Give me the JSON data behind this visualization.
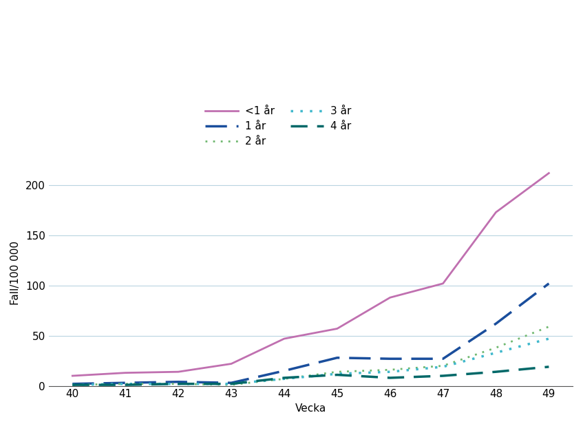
{
  "weeks": [
    40,
    41,
    42,
    43,
    44,
    45,
    46,
    47,
    48,
    49
  ],
  "series": {
    "<1 ar": [
      10,
      13,
      14,
      22,
      47,
      57,
      88,
      102,
      173,
      212
    ],
    "1 ar": [
      2,
      3,
      4,
      3,
      15,
      28,
      27,
      27,
      62,
      102
    ],
    "2 ar": [
      1,
      2,
      2,
      1,
      7,
      14,
      16,
      20,
      38,
      59
    ],
    "3 ar": [
      1,
      2,
      2,
      2,
      7,
      12,
      14,
      19,
      33,
      47
    ],
    "4 ar": [
      1,
      1,
      2,
      2,
      8,
      11,
      8,
      10,
      14,
      19
    ]
  },
  "labels": {
    "<1 ar": "<1 år",
    "1 ar": "1 år",
    "2 ar": "2 år",
    "3 ar": "3 år",
    "4 ar": "4 år"
  },
  "colors": {
    "<1 ar": "#c070b0",
    "1 ar": "#1a4e9c",
    "2 ar": "#70b870",
    "3 ar": "#40b8cc",
    "4 ar": "#006868"
  },
  "ylabel": "Fall/100 000",
  "xlabel": "Vecka",
  "ylim": [
    0,
    225
  ],
  "yticks": [
    0,
    50,
    100,
    150,
    200
  ],
  "xticks": [
    40,
    41,
    42,
    43,
    44,
    45,
    46,
    47,
    48,
    49
  ],
  "background_color": "#ffffff",
  "grid_color": "#b8d4e0",
  "axis_fontsize": 11,
  "tick_fontsize": 11
}
